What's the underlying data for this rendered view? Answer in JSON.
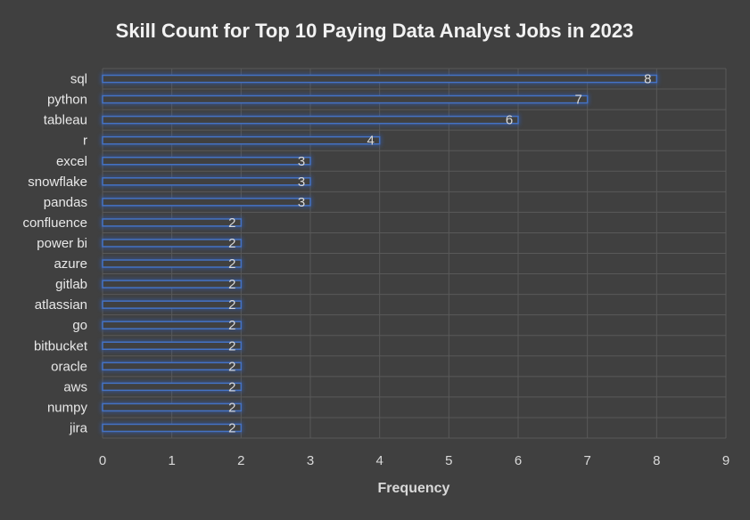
{
  "chart_data": {
    "type": "bar",
    "orientation": "horizontal",
    "title": "Skill Count for Top 10 Paying Data Analyst Jobs in 2023",
    "xlabel": "Frequency",
    "ylabel": "",
    "categories": [
      "sql",
      "python",
      "tableau",
      "r",
      "excel",
      "snowflake",
      "pandas",
      "confluence",
      "power bi",
      "azure",
      "gitlab",
      "atlassian",
      "go",
      "bitbucket",
      "oracle",
      "aws",
      "numpy",
      "jira"
    ],
    "values": [
      8,
      7,
      6,
      4,
      3,
      3,
      3,
      2,
      2,
      2,
      2,
      2,
      2,
      2,
      2,
      2,
      2,
      2
    ],
    "xlim": [
      0,
      9
    ],
    "xticks": [
      "0",
      "1",
      "2",
      "3",
      "4",
      "5",
      "6",
      "7",
      "8",
      "9"
    ],
    "grid": true,
    "legend": "none",
    "data_labels": true,
    "colors": {
      "background": "#404040",
      "bar_fill": "#404040",
      "bar_edge": "#4472c4",
      "bar_glow": "#2f5fbf",
      "grid": "#595959",
      "text": "#d9d9d9"
    }
  }
}
